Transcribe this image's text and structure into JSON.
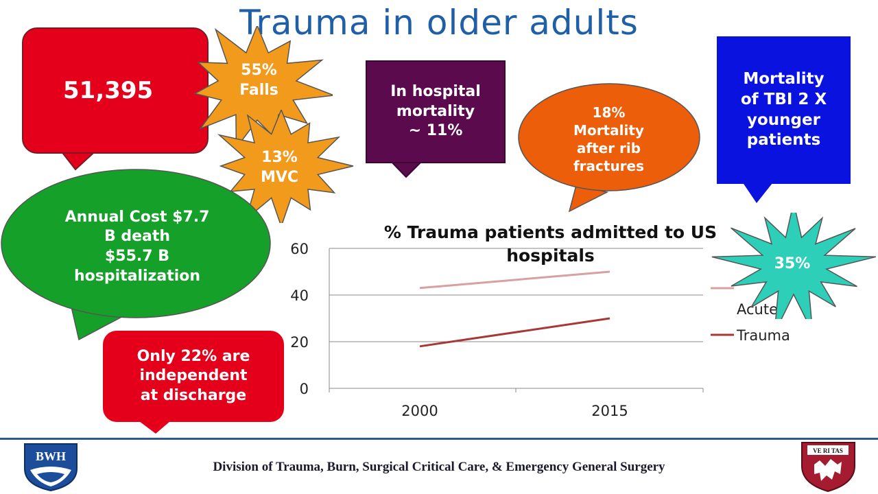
{
  "slide": {
    "title": "Trauma in older adults",
    "footer": "Division of Trauma, Burn, Surgical Critical Care, & Emergency General Surgery",
    "logo_left": "BWH",
    "logo_right": "VE RI TAS"
  },
  "callouts": {
    "total_patients": "51,395",
    "falls_pct": "55%",
    "falls_label": "Falls",
    "mvc_pct": "13%",
    "mvc_label": "MVC",
    "hospital_mortality": [
      "In hospital",
      "mortality",
      "~ 11%"
    ],
    "rib_fracture": [
      "18%",
      "Mortality",
      "after rib",
      "fractures"
    ],
    "tbi": [
      "Mortality",
      "of TBI 2 X",
      "younger",
      "patients"
    ],
    "annual_cost": [
      "Annual Cost $7.7",
      "B death",
      "$55.7 B",
      "hospitalization"
    ],
    "independent": [
      "Only 22% are",
      "independent",
      "at discharge"
    ],
    "trauma_pct": "35%"
  },
  "colors": {
    "title": "#1f5fa8",
    "red": "#e4001b",
    "purple": "#5a0a4d",
    "blue": "#0a12e0",
    "orange_star": "#f29a1c",
    "orange_bubble": "#ec5e0a",
    "green_bubble": "#15a02a",
    "teal_star": "#2ecfb8",
    "series_acute": "#d8a0a0",
    "series_trauma": "#a83838"
  },
  "chart_data": {
    "type": "line",
    "title": "% Trauma patients admitted to US hospitals",
    "categories": [
      "2000",
      "2015"
    ],
    "series": [
      {
        "name": "Acute",
        "legend_visible_text": "Acute",
        "values": [
          43,
          50
        ]
      },
      {
        "name": "Trauma",
        "values": [
          18,
          30
        ]
      }
    ],
    "ylim": [
      0,
      60
    ],
    "yticks": [
      "0",
      "20",
      "40",
      "60"
    ],
    "grid": true,
    "legend": "right"
  }
}
